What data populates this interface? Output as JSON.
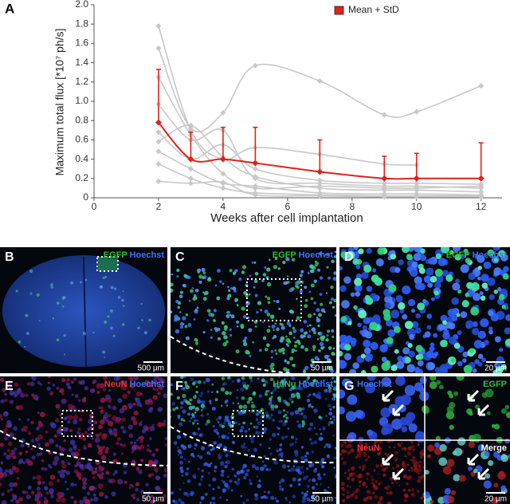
{
  "chart_data": {
    "type": "line",
    "panel_label": "A",
    "xlabel": "Weeks after cell implantation",
    "ylabel": "Maximum total flux [*10⁷ ph/s]",
    "x": [
      2,
      3,
      4,
      5,
      7,
      9,
      10,
      12
    ],
    "xlim": [
      0,
      12.65
    ],
    "xticks": [
      0,
      2,
      4,
      6,
      8,
      10,
      12
    ],
    "ylim": [
      0,
      2
    ],
    "yticks": [
      0,
      0.2,
      0.4,
      0.6,
      0.8,
      {
        "value": 1,
        "label": "1.0"
      },
      1.2,
      1.4,
      1.6,
      1.8,
      {
        "value": 2,
        "label": "2.0"
      }
    ],
    "individual_color": "#c8c8c8",
    "individual": [
      {
        "values": [
          1.55,
          0.72,
          0.88,
          1.37,
          1.21,
          0.86,
          0.89,
          1.16
        ]
      },
      {
        "values": [
          1.78,
          0.7,
          0.4,
          0.52,
          0.45,
          0.35,
          0.34,
          null
        ]
      },
      {
        "values": [
          1.25,
          0.65,
          0.25,
          0.1,
          0.12,
          0.1,
          0.1,
          0.12
        ]
      },
      {
        "values": [
          0.97,
          0.6,
          0.7,
          0.2,
          0.15,
          0.12,
          0.12,
          0.1
        ]
      },
      {
        "values": [
          0.68,
          0.4,
          0.55,
          0.3,
          0.18,
          0.15,
          0.15,
          0.14
        ]
      },
      {
        "values": [
          0.58,
          0.75,
          0.42,
          0.22,
          0.1,
          0.08,
          0.08,
          0.06
        ]
      },
      {
        "values": [
          0.48,
          0.3,
          0.15,
          0.12,
          0.05,
          0.04,
          0.04,
          0.03
        ]
      },
      {
        "values": [
          0.35,
          0.2,
          0.1,
          0.05,
          0.03,
          0.02,
          0.02,
          0.02
        ]
      },
      {
        "values": [
          0.17,
          0.15,
          0.16,
          0.03,
          0.02,
          0.01,
          0.01,
          0.01
        ]
      }
    ],
    "series": [
      {
        "name": "Mean + StD",
        "color": "#e0211f",
        "values": [
          0.78,
          0.4,
          0.4,
          0.36,
          0.27,
          0.2,
          0.2,
          0.2
        ],
        "errors": [
          0.55,
          0.28,
          0.33,
          0.37,
          0.33,
          0.23,
          0.26,
          0.37
        ]
      }
    ],
    "legend": "upper right"
  },
  "image_panels": [
    {
      "letter": "B",
      "stains": [
        {
          "text": "EGFP",
          "color": "#2fbf2f"
        },
        {
          "text": "Hoechst",
          "color": "#3d73f5"
        }
      ],
      "scale_bar": "500 µm"
    },
    {
      "letter": "C",
      "stains": [
        {
          "text": "EGFP",
          "color": "#2fbf2f"
        },
        {
          "text": "Hoechst",
          "color": "#3d73f5"
        }
      ],
      "scale_bar": "50 µm"
    },
    {
      "letter": "D",
      "stains": [
        {
          "text": "EGFP",
          "color": "#2fbf2f"
        },
        {
          "text": "Hoechst",
          "color": "#3d73f5"
        }
      ],
      "scale_bar": "20 µm"
    },
    {
      "letter": "E",
      "stains": [
        {
          "text": "NeuN",
          "color": "#f03030"
        },
        {
          "text": "Hoechst",
          "color": "#3d73f5"
        }
      ],
      "scale_bar": "50 µm"
    },
    {
      "letter": "F",
      "stains": [
        {
          "text": "HuNu",
          "color": "#2fbf2f"
        },
        {
          "text": "Hoechst",
          "color": "#3d73f5"
        }
      ],
      "scale_bar": "50 µm"
    },
    {
      "letter": "G",
      "quadrants": [
        {
          "text": "Hoechst",
          "color": "#3d73f5"
        },
        {
          "text": "EGFP",
          "color": "#2fbf2f"
        },
        {
          "text": "NeuN",
          "color": "#f03030"
        },
        {
          "text": "Merge",
          "color": "#ffffff"
        }
      ],
      "scale_bar": "20 µm"
    }
  ]
}
